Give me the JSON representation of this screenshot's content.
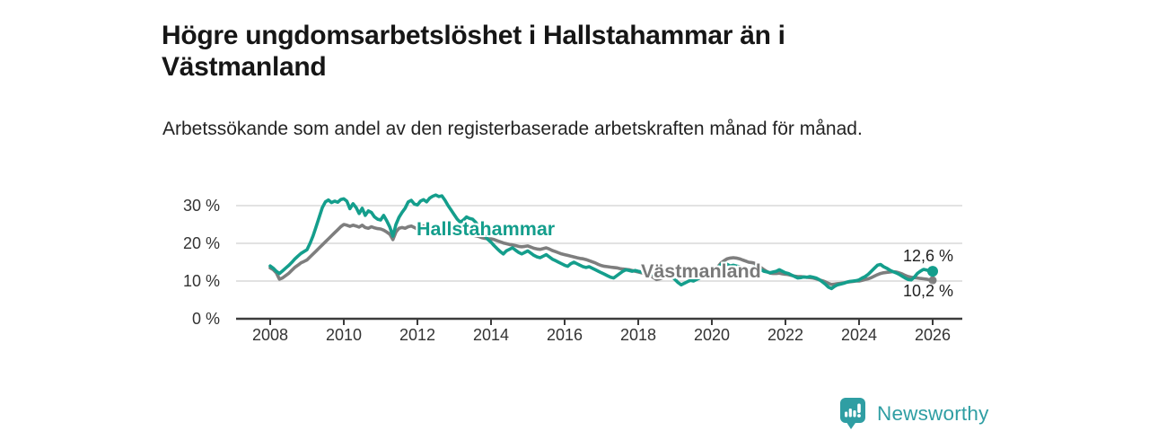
{
  "header": {
    "title": "Högre ungdomsarbetslöshet i Hallstahammar än i Västmanland",
    "subtitle": "Arbetssökande som andel av den registerbaserade arbetskraften månad för månad."
  },
  "chart_data": {
    "type": "line",
    "title": "Högre ungdomsarbetslöshet i Hallstahammar än i Västmanland",
    "subtitle": "Arbetssökande som andel av den registerbaserade arbetskraften månad för månad.",
    "unit": "%",
    "grid": "horizontal",
    "legend_position": "inline-labels",
    "x_start_year": 2008,
    "points_per_year": 12,
    "xlim": [
      2007.1,
      2026.8
    ],
    "ylim": [
      0,
      33
    ],
    "x_ticks": [
      2008,
      2010,
      2012,
      2014,
      2016,
      2018,
      2020,
      2022,
      2024,
      2026
    ],
    "y_ticks": [
      {
        "value": 30,
        "label": "30 %"
      },
      {
        "value": 20,
        "label": "20 %"
      },
      {
        "value": 10,
        "label": "10 %"
      },
      {
        "value": 0,
        "label": "0 %"
      }
    ],
    "series": [
      {
        "name": "Hallstahammar",
        "color": "#149e8c",
        "end_label": "12,6 %",
        "end_value": 12.6,
        "values": [
          14.0,
          13.4,
          12.6,
          12.0,
          12.7,
          13.4,
          14.1,
          14.9,
          15.8,
          16.6,
          17.3,
          17.8,
          18.3,
          20.0,
          22.0,
          24.5,
          27.0,
          29.5,
          31.0,
          31.5,
          30.8,
          31.2,
          30.9,
          31.6,
          31.8,
          31.2,
          29.2,
          30.5,
          29.5,
          27.9,
          29.3,
          27.4,
          28.6,
          28.2,
          27.0,
          26.4,
          26.2,
          27.4,
          26.0,
          24.3,
          21.9,
          25.0,
          26.9,
          28.2,
          29.3,
          31.0,
          31.4,
          30.4,
          30.2,
          31.2,
          31.6,
          31.0,
          32.0,
          32.5,
          32.8,
          32.4,
          32.6,
          31.4,
          30.0,
          28.8,
          27.6,
          26.4,
          25.6,
          26.2,
          27.0,
          26.6,
          26.4,
          25.6,
          24.4,
          23.2,
          22.0,
          21.0,
          20.3,
          19.4,
          18.6,
          17.8,
          17.2,
          18.0,
          18.4,
          18.8,
          18.2,
          17.6,
          17.2,
          17.6,
          18.0,
          17.4,
          16.8,
          16.4,
          16.2,
          16.6,
          17.0,
          16.4,
          15.8,
          15.4,
          15.0,
          14.6,
          14.2,
          13.9,
          14.6,
          15.0,
          14.6,
          14.2,
          13.8,
          13.6,
          13.8,
          13.4,
          13.0,
          12.6,
          12.2,
          11.8,
          11.4,
          11.0,
          10.8,
          11.4,
          12.0,
          12.6,
          13.0,
          12.8,
          12.6,
          12.8,
          12.6,
          12.4,
          12.6,
          12.2,
          12.0,
          11.8,
          11.6,
          11.4,
          11.2,
          11.4,
          11.6,
          11.2,
          10.4,
          9.6,
          9.0,
          9.4,
          9.8,
          10.2,
          10.0,
          10.4,
          10.8,
          11.2,
          11.6,
          11.8,
          12.0,
          12.6,
          13.6,
          14.4,
          14.8,
          14.4,
          14.0,
          14.2,
          14.0,
          13.8,
          13.6,
          13.4,
          13.4,
          13.6,
          13.8,
          13.4,
          13.0,
          12.6,
          12.4,
          12.2,
          12.4,
          12.6,
          13.0,
          12.6,
          12.2,
          12.0,
          11.6,
          11.2,
          10.8,
          10.9,
          11.1,
          11.0,
          11.2,
          11.0,
          10.8,
          10.4,
          9.8,
          9.2,
          8.4,
          8.0,
          8.6,
          9.0,
          9.2,
          9.4,
          9.7,
          9.9,
          10.0,
          10.1,
          10.3,
          10.8,
          11.2,
          11.8,
          12.6,
          13.4,
          14.2,
          14.4,
          13.8,
          13.4,
          12.9,
          12.5,
          12.2,
          11.8,
          11.3,
          10.8,
          10.4,
          10.3,
          11.0,
          12.0,
          12.6,
          13.1,
          12.9,
          12.7,
          12.6
        ]
      },
      {
        "name": "Västmanland",
        "color": "#7e7e7e",
        "end_label": "10,2 %",
        "end_value": 10.2,
        "values": [
          13.5,
          13.0,
          12.2,
          10.5,
          10.8,
          11.4,
          12.0,
          12.8,
          13.6,
          14.2,
          14.8,
          15.2,
          15.6,
          16.4,
          17.2,
          18.0,
          18.8,
          19.6,
          20.4,
          21.2,
          22.0,
          22.8,
          23.6,
          24.4,
          25.0,
          24.8,
          24.5,
          24.8,
          24.6,
          24.3,
          24.8,
          24.2,
          24.0,
          24.4,
          24.1,
          23.9,
          23.8,
          23.5,
          23.0,
          22.4,
          21.0,
          23.0,
          24.0,
          24.2,
          24.0,
          24.4,
          24.6,
          24.2,
          23.8,
          24.3,
          24.6,
          24.3,
          24.5,
          24.8,
          24.6,
          24.8,
          24.5,
          24.2,
          23.8,
          23.4,
          23.0,
          22.7,
          22.4,
          22.6,
          22.8,
          22.5,
          22.2,
          22.0,
          21.8,
          21.5,
          21.3,
          21.2,
          21.2,
          21.0,
          20.7,
          20.4,
          20.1,
          19.9,
          19.7,
          19.6,
          19.4,
          19.2,
          19.1,
          19.2,
          19.3,
          19.0,
          18.7,
          18.5,
          18.4,
          18.6,
          18.8,
          18.5,
          18.1,
          17.8,
          17.5,
          17.2,
          17.0,
          16.8,
          16.6,
          16.4,
          16.2,
          16.0,
          15.9,
          15.7,
          15.4,
          15.1,
          14.8,
          14.4,
          14.1,
          13.9,
          13.8,
          13.7,
          13.6,
          13.5,
          13.3,
          13.2,
          13.1,
          13.0,
          12.8,
          12.6,
          12.4,
          12.2,
          12.0,
          11.7,
          11.4,
          10.9,
          10.4,
          10.6,
          10.9,
          11.2,
          11.5,
          11.7,
          11.8,
          11.9,
          12.0,
          11.9,
          11.8,
          11.7,
          11.6,
          11.5,
          11.4,
          11.4,
          11.5,
          11.7,
          12.0,
          12.8,
          13.8,
          14.8,
          15.4,
          15.9,
          16.1,
          16.2,
          16.1,
          15.9,
          15.6,
          15.3,
          15.0,
          14.9,
          14.7,
          14.2,
          13.6,
          13.0,
          12.5,
          12.1,
          12.0,
          12.0,
          12.1,
          11.9,
          11.8,
          11.7,
          11.5,
          11.3,
          11.2,
          11.2,
          11.1,
          11.0,
          10.9,
          10.8,
          10.6,
          10.3,
          10.1,
          9.8,
          9.4,
          9.1,
          9.2,
          9.3,
          9.4,
          9.5,
          9.7,
          9.8,
          9.9,
          10.0,
          10.0,
          10.2,
          10.4,
          10.6,
          10.9,
          11.3,
          11.7,
          12.0,
          12.2,
          12.3,
          12.4,
          12.5,
          12.4,
          12.2,
          11.9,
          11.5,
          11.2,
          11.0,
          10.9,
          10.8,
          10.7,
          10.6,
          10.5,
          10.3,
          10.2
        ]
      }
    ],
    "colors": {
      "axis": "#3c3c3c",
      "grid": "#d9d9d9",
      "tick_text": "#333333",
      "accent_teal": "#149e8c",
      "series_gray": "#7e7e7e",
      "brand_teal": "#2f9ea3"
    }
  },
  "footer": {
    "brand": "Newsworthy"
  }
}
